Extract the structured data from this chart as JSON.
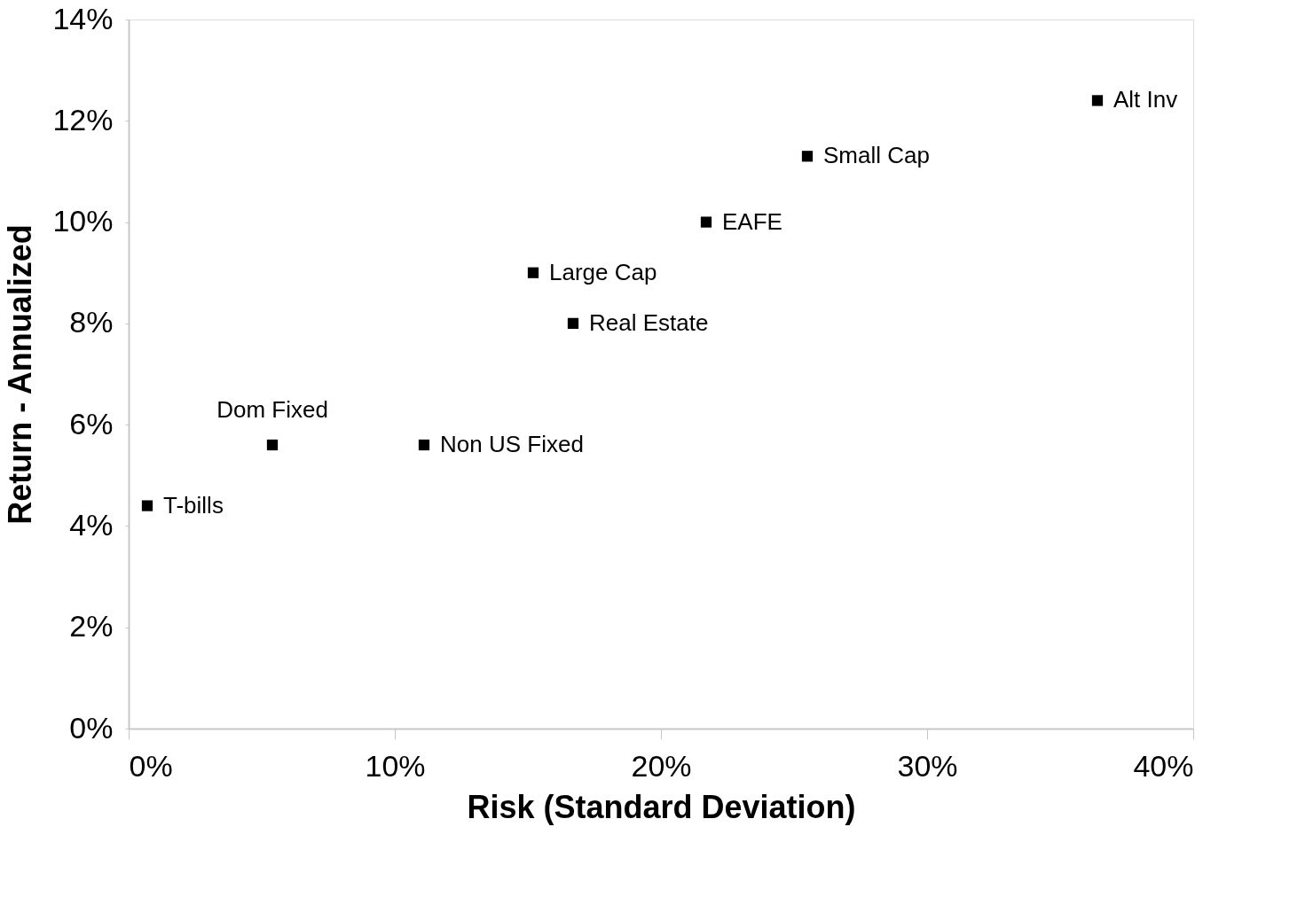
{
  "chart_data": {
    "type": "scatter",
    "xlabel": "Risk (Standard Deviation)",
    "ylabel": "Return - Annualized",
    "x": [
      0.7,
      5.4,
      11.1,
      15.2,
      16.7,
      21.7,
      25.5,
      36.4
    ],
    "series": [
      {
        "color": "#000000",
        "values": [
          4.4,
          5.6,
          5.6,
          9.0,
          8.0,
          10.0,
          11.3,
          12.4
        ]
      }
    ],
    "marker": "square",
    "grid": false,
    "xlim": [
      0,
      40
    ],
    "ylim": [
      0,
      14
    ],
    "xticks": [
      {
        "value": 0,
        "label": "0%"
      },
      {
        "value": 10,
        "label": "10%"
      },
      {
        "value": 20,
        "label": "20%"
      },
      {
        "value": 30,
        "label": "30%"
      },
      {
        "value": 40,
        "label": "40%"
      }
    ],
    "yticks": [
      {
        "value": 0,
        "label": "0%"
      },
      {
        "value": 2,
        "label": "2%"
      },
      {
        "value": 4,
        "label": "4%"
      },
      {
        "value": 6,
        "label": "6%"
      },
      {
        "value": 8,
        "label": "8%"
      },
      {
        "value": 10,
        "label": "10%"
      },
      {
        "value": 12,
        "label": "12%"
      },
      {
        "value": 14,
        "label": "14%"
      }
    ],
    "annotations": [
      {
        "text": "T-bills",
        "x": 0.7,
        "y": 4.4
      },
      {
        "text": "Dom Fixed",
        "x": 5.4,
        "y": 5.6
      },
      {
        "text": "Non US Fixed",
        "x": 11.1,
        "y": 5.6
      },
      {
        "text": "Large Cap",
        "x": 15.2,
        "y": 9.0
      },
      {
        "text": "Real Estate",
        "x": 16.7,
        "y": 8.0
      },
      {
        "text": "EAFE",
        "x": 21.7,
        "y": 10.0
      },
      {
        "text": "Small Cap",
        "x": 25.5,
        "y": 11.3
      },
      {
        "text": "Alt Inv",
        "x": 36.4,
        "y": 12.4
      }
    ]
  }
}
